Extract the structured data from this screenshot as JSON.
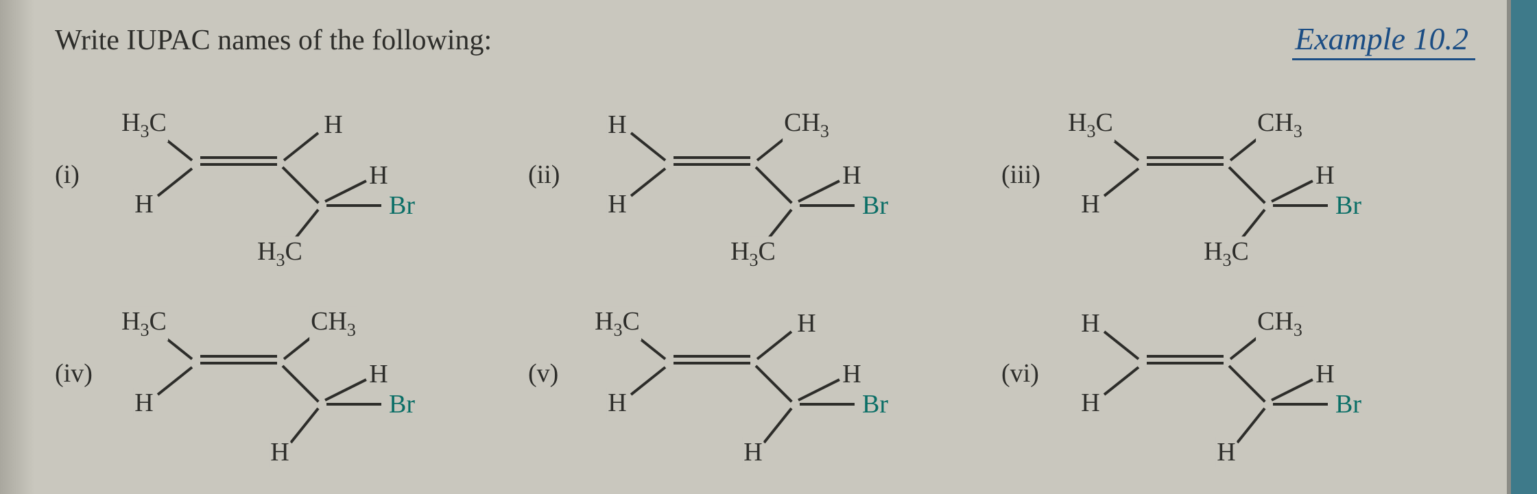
{
  "header": {
    "prompt": "Write IUPAC names of the following:",
    "example": "Example  10.2"
  },
  "labels": {
    "i": "(i)",
    "ii": "(ii)",
    "iii": "(iii)",
    "iv": "(iv)",
    "v": "(v)",
    "vi": "(vi)"
  },
  "groups": {
    "H": "H",
    "CH3": "CH",
    "CH3_sub": "3",
    "H3C": "H",
    "H3C_sub": "3",
    "H3C_tail": "C",
    "Br": "Br"
  },
  "style": {
    "background": "#c9c7be",
    "text_color": "#2d2d2a",
    "accent_color": "#1b4d84",
    "br_color": "#0a6e66",
    "prompt_fontsize": 42,
    "example_fontsize": 46,
    "atom_fontsize": 38,
    "double_bond_gap": 10,
    "bond_thickness": 4
  },
  "molecules": [
    {
      "id": "i",
      "top_left": "H3C",
      "bot_left": "H",
      "top_right": "H",
      "c3_top": "H",
      "c3_bot": "H3C",
      "c3_right": "Br"
    },
    {
      "id": "ii",
      "top_left": "H",
      "bot_left": "H",
      "top_right": "CH3",
      "c3_top": "H",
      "c3_bot": "H3C",
      "c3_right": "Br"
    },
    {
      "id": "iii",
      "top_left": "H3C",
      "bot_left": "H",
      "top_right": "CH3",
      "c3_top": "H",
      "c3_bot": "H3C",
      "c3_right": "Br"
    },
    {
      "id": "iv",
      "top_left": "H3C",
      "bot_left": "H",
      "top_right": "CH3",
      "c3_top": "H",
      "c3_bot": "H",
      "c3_right": "Br"
    },
    {
      "id": "v",
      "top_left": "H3C",
      "bot_left": "H",
      "top_right": "H",
      "c3_top": "H",
      "c3_bot": "H",
      "c3_right": "Br"
    },
    {
      "id": "vi",
      "top_left": "H",
      "bot_left": "H",
      "top_right": "CH3",
      "c3_top": "H",
      "c3_bot": "H",
      "c3_right": "Br"
    }
  ]
}
